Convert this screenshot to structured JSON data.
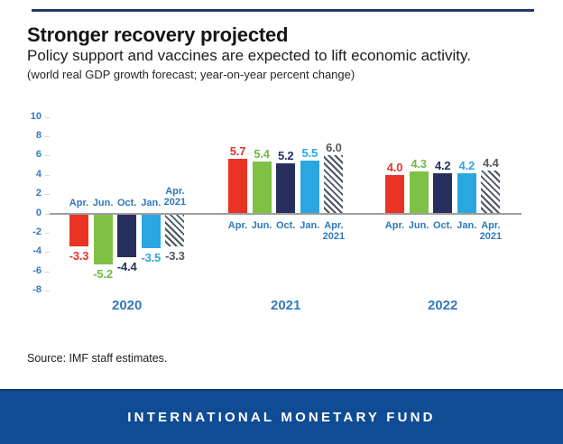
{
  "page": {
    "background": "#FFFFFF",
    "top_rule_color": "#1E3A68"
  },
  "header": {
    "title": "Stronger recovery projected",
    "subtitle": "Policy support and vaccines are expected to lift economic activity.",
    "note": "(world real GDP growth forecast; year-on-year percent change)"
  },
  "chart_data": {
    "type": "bar",
    "title": "Stronger recovery projected",
    "subtitle": "Policy support and vaccines are expected to lift economic activity.",
    "unit_label": "world real GDP growth forecast; year-on-year percent change",
    "grid": false,
    "legend_position": "none",
    "y_axis": {
      "min": -8,
      "max": 10,
      "ticks": [
        10,
        8,
        6,
        4,
        2,
        0,
        -2,
        -4,
        -6,
        -8
      ]
    },
    "categories": [
      "2020",
      "2021",
      "2022"
    ],
    "series": [
      {
        "name": "Apr.",
        "values": [
          -3.3,
          5.7,
          4.0
        ],
        "color": "#EA3323",
        "label_color": "#E8342A",
        "style": "solid"
      },
      {
        "name": "Jun.",
        "values": [
          -5.2,
          5.4,
          4.3
        ],
        "color": "#7EC145",
        "label_color": "#6CBB45",
        "style": "solid"
      },
      {
        "name": "Oct.",
        "values": [
          -4.4,
          5.2,
          4.2
        ],
        "color": "#272F5F",
        "label_color": "#272F5F",
        "style": "solid"
      },
      {
        "name": "Jan.",
        "values": [
          -3.5,
          5.5,
          4.2
        ],
        "color": "#2AA7E0",
        "label_color": "#2AA7E0",
        "style": "solid"
      },
      {
        "name": "Apr. 2021",
        "values": [
          -3.3,
          6.0,
          4.4
        ],
        "color": "#4C5565",
        "label_color": "#55585E",
        "style": "hatch"
      }
    ],
    "axis_label_color": "#3179BE",
    "month_label_color": "#2E79BE",
    "year_label_color": "#3179BE",
    "zero_line_color": "#9E9E9E"
  },
  "source": "Source: IMF staff estimates.",
  "footer": {
    "label": "INTERNATIONAL MONETARY FUND",
    "background": "#0F4C94",
    "text_color": "#FFFFFF"
  }
}
